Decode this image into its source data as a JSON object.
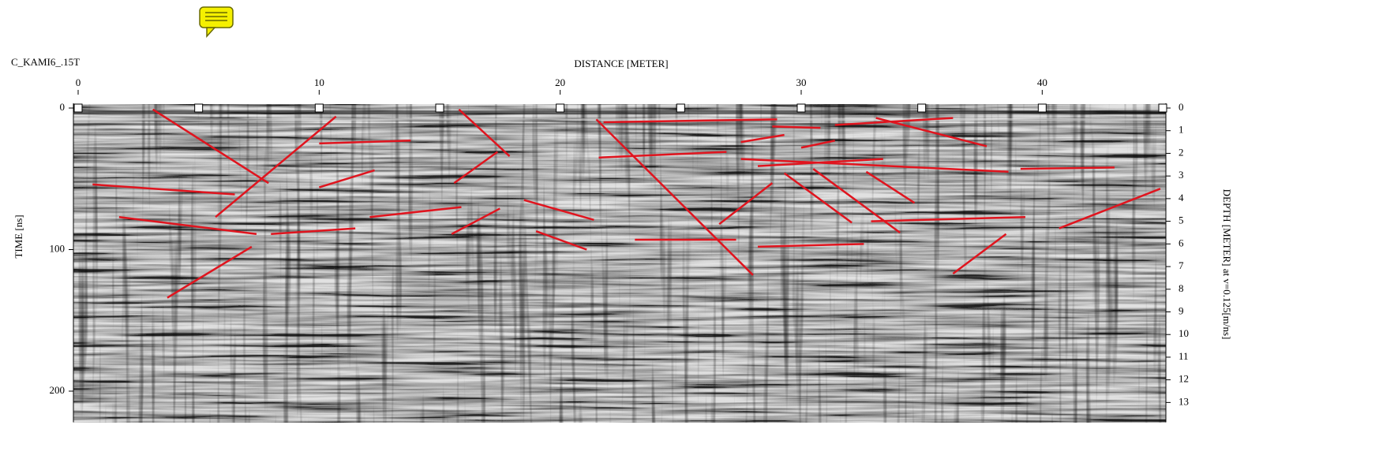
{
  "chart_data": {
    "type": "radargram",
    "file_name": "C_KAMI6_.15T",
    "x_label": "DISTANCE [METER]",
    "y_label": "TIME [ns]",
    "y2_label": "DEPTH [METER] at v=0.125[m/ns]",
    "xlim": [
      0,
      45
    ],
    "xticks": [
      0,
      10,
      20,
      30,
      40
    ],
    "ylim": [
      0,
      222
    ],
    "yticks": [
      0,
      100,
      200
    ],
    "y2lim": [
      0,
      13.875
    ],
    "y2ticks": [
      0,
      1,
      2,
      3,
      4,
      5,
      6,
      7,
      8,
      9,
      10,
      11,
      12,
      13
    ],
    "markers": [
      0,
      5,
      10,
      15,
      20,
      25,
      30,
      35,
      40,
      45
    ],
    "color": "#e0141e",
    "segments": [
      {
        "x": [
          3.1,
          7.9
        ],
        "y": [
          1,
          53
        ]
      },
      {
        "x": [
          5.7,
          10.7
        ],
        "y": [
          77,
          6
        ]
      },
      {
        "x": [
          0.6,
          6.5
        ],
        "y": [
          54,
          61
        ]
      },
      {
        "x": [
          1.7,
          7.4
        ],
        "y": [
          77,
          89
        ]
      },
      {
        "x": [
          8.0,
          11.5
        ],
        "y": [
          89,
          85
        ]
      },
      {
        "x": [
          3.7,
          7.2
        ],
        "y": [
          134,
          98
        ]
      },
      {
        "x": [
          10.0,
          13.8
        ],
        "y": [
          25,
          23
        ]
      },
      {
        "x": [
          10.0,
          12.3
        ],
        "y": [
          56,
          44
        ]
      },
      {
        "x": [
          12.1,
          15.9
        ],
        "y": [
          77,
          70
        ]
      },
      {
        "x": [
          15.8,
          17.9
        ],
        "y": [
          1,
          34
        ]
      },
      {
        "x": [
          15.6,
          17.4
        ],
        "y": [
          53,
          31
        ]
      },
      {
        "x": [
          15.5,
          17.5
        ],
        "y": [
          89,
          71
        ]
      },
      {
        "x": [
          18.5,
          21.4
        ],
        "y": [
          65,
          79
        ]
      },
      {
        "x": [
          19.0,
          21.1
        ],
        "y": [
          87,
          100
        ]
      },
      {
        "x": [
          21.8,
          29.0
        ],
        "y": [
          10,
          8
        ]
      },
      {
        "x": [
          21.5,
          28.0
        ],
        "y": [
          8,
          118
        ]
      },
      {
        "x": [
          21.6,
          26.9
        ],
        "y": [
          35,
          31
        ]
      },
      {
        "x": [
          27.5,
          29.3
        ],
        "y": [
          24,
          19
        ]
      },
      {
        "x": [
          28.8,
          30.8
        ],
        "y": [
          13,
          14
        ]
      },
      {
        "x": [
          30.0,
          31.4
        ],
        "y": [
          28,
          23
        ]
      },
      {
        "x": [
          31.4,
          36.3
        ],
        "y": [
          12,
          7
        ]
      },
      {
        "x": [
          33.1,
          37.7
        ],
        "y": [
          7,
          27
        ]
      },
      {
        "x": [
          27.5,
          38.6
        ],
        "y": [
          36,
          45
        ]
      },
      {
        "x": [
          28.2,
          33.4
        ],
        "y": [
          41,
          36
        ]
      },
      {
        "x": [
          39.1,
          43.0
        ],
        "y": [
          43,
          42
        ]
      },
      {
        "x": [
          26.6,
          28.8
        ],
        "y": [
          82,
          53
        ]
      },
      {
        "x": [
          29.3,
          32.1
        ],
        "y": [
          46,
          81
        ]
      },
      {
        "x": [
          30.5,
          34.1
        ],
        "y": [
          43,
          88
        ]
      },
      {
        "x": [
          32.7,
          34.7
        ],
        "y": [
          45,
          67
        ]
      },
      {
        "x": [
          32.9,
          39.3
        ],
        "y": [
          80,
          77
        ]
      },
      {
        "x": [
          23.1,
          27.3
        ],
        "y": [
          93,
          93
        ]
      },
      {
        "x": [
          28.2,
          32.6
        ],
        "y": [
          98,
          96
        ]
      },
      {
        "x": [
          36.3,
          38.5
        ],
        "y": [
          117,
          89
        ]
      },
      {
        "x": [
          40.7,
          44.9
        ],
        "y": [
          85,
          57
        ]
      }
    ]
  }
}
